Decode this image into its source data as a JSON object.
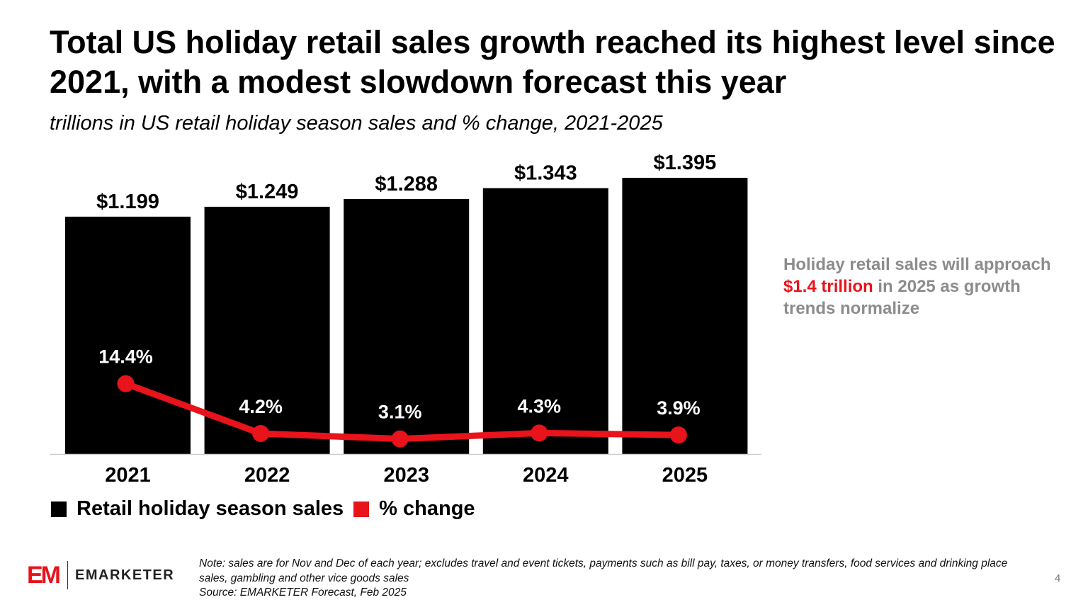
{
  "title": "Total US holiday retail sales growth reached its highest level since 2021, with a modest slowdown forecast this year",
  "subtitle": "trillions in US retail holiday season sales and % change, 2021-2025",
  "chart_data": {
    "type": "bar",
    "categories": [
      "2021",
      "2022",
      "2023",
      "2024",
      "2025"
    ],
    "series": [
      {
        "name": "Retail holiday season sales",
        "type": "bar",
        "values": [
          1.199,
          1.249,
          1.288,
          1.343,
          1.395
        ],
        "labels": [
          "$1.199",
          "$1.249",
          "$1.288",
          "$1.343",
          "$1.395"
        ],
        "color": "#000000"
      },
      {
        "name": "% change",
        "type": "line",
        "values": [
          14.4,
          4.2,
          3.1,
          4.3,
          3.9
        ],
        "labels": [
          "14.4%",
          "4.2%",
          "3.1%",
          "4.3%",
          "3.9%"
        ],
        "color": "#e8131b"
      }
    ],
    "ylim": [
      0,
      1.4
    ],
    "y2lim": [
      0,
      20
    ],
    "grid": false,
    "legend": "bottom-left"
  },
  "legend": {
    "sales": "Retail holiday season sales",
    "change": "% change"
  },
  "callout": {
    "pre": "Holiday retail sales will approach ",
    "highlight": "$1.4 trillion",
    "post": " in 2025 as growth trends normalize"
  },
  "logo": {
    "mark": "EM",
    "name": "EMARKETER"
  },
  "note": "Note: sales are for Nov and Dec of each year; excludes travel and event tickets, payments such as bill pay, taxes, or money transfers, food services and drinking place sales, gambling and other vice goods sales",
  "source": "Source: EMARKETER Forecast, Feb 2025",
  "page_number": "4"
}
